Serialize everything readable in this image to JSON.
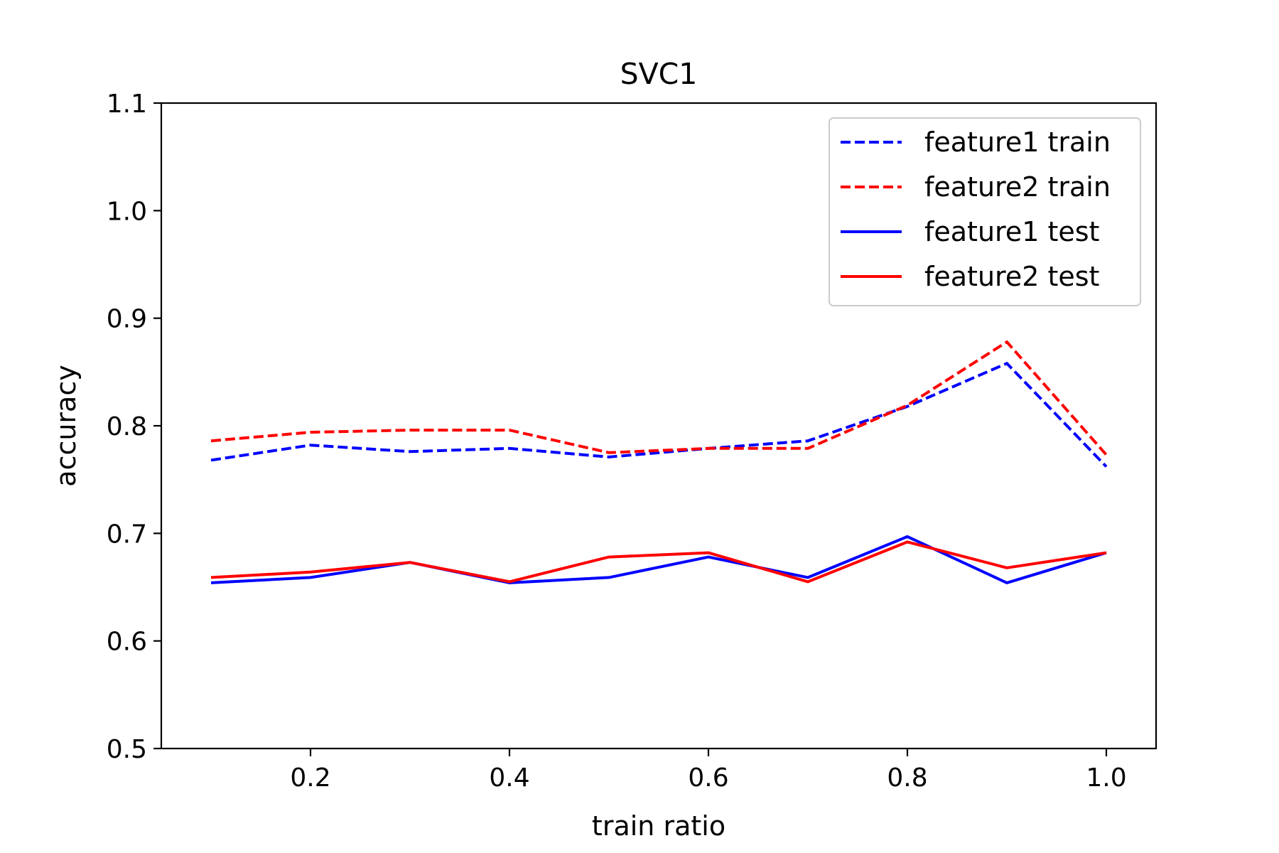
{
  "chart_data": {
    "type": "line",
    "title": "SVC1",
    "xlabel": "train ratio",
    "ylabel": "accuracy",
    "xlim": [
      0.05,
      1.05
    ],
    "ylim": [
      0.5,
      1.1
    ],
    "xticks": [
      0.2,
      0.4,
      0.6,
      0.8,
      1.0
    ],
    "xtick_labels": [
      "0.2",
      "0.4",
      "0.6",
      "0.8",
      "1.0"
    ],
    "yticks": [
      0.5,
      0.6,
      0.7,
      0.8,
      0.9,
      1.0,
      1.1
    ],
    "ytick_labels": [
      "0.5",
      "0.6",
      "0.7",
      "0.8",
      "0.9",
      "1.0",
      "1.1"
    ],
    "x": [
      0.1,
      0.2,
      0.3,
      0.4,
      0.5,
      0.6,
      0.7,
      0.8,
      0.9,
      1.0
    ],
    "legend_position": "top-right",
    "grid": false,
    "series": [
      {
        "name": "feature1 train",
        "color": "#0000ff",
        "style": "dashed",
        "values": [
          0.768,
          0.782,
          0.776,
          0.779,
          0.771,
          0.779,
          0.786,
          0.818,
          0.858,
          0.762
        ]
      },
      {
        "name": "feature2 train",
        "color": "#ff0000",
        "style": "dashed",
        "values": [
          0.786,
          0.794,
          0.796,
          0.796,
          0.775,
          0.779,
          0.779,
          0.819,
          0.878,
          0.773
        ]
      },
      {
        "name": "feature1 test",
        "color": "#0000ff",
        "style": "solid",
        "values": [
          0.654,
          0.659,
          0.673,
          0.654,
          0.659,
          0.678,
          0.659,
          0.697,
          0.654,
          0.682
        ]
      },
      {
        "name": "feature2 test",
        "color": "#ff0000",
        "style": "solid",
        "values": [
          0.659,
          0.664,
          0.673,
          0.655,
          0.678,
          0.682,
          0.655,
          0.692,
          0.668,
          0.682
        ]
      }
    ]
  }
}
